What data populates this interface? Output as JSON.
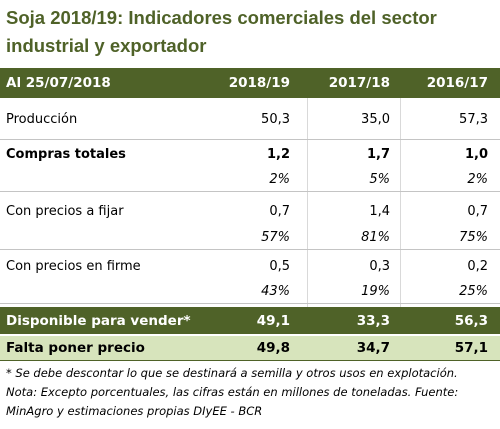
{
  "title": "Soja 2018/19: Indicadores comerciales del sector industrial y exportador",
  "table": {
    "header": [
      "Al 25/07/2018",
      "2018/19",
      "2017/18",
      "2016/17"
    ],
    "rows": [
      {
        "label": "Producción",
        "values": [
          "50,3",
          "35,0",
          "57,3"
        ]
      },
      {
        "label": "Compras totales",
        "values": [
          "1,2",
          "1,7",
          "1,0"
        ],
        "shares": [
          "2%",
          "5%",
          "2%"
        ]
      },
      {
        "label": "Con precios a fijar",
        "values": [
          "0,7",
          "1,4",
          "0,7"
        ],
        "shares": [
          "57%",
          "81%",
          "75%"
        ]
      },
      {
        "label": "Con precios en firme",
        "values": [
          "0,5",
          "0,3",
          "0,2"
        ],
        "shares": [
          "43%",
          "19%",
          "25%"
        ]
      },
      {
        "label": "Disponible para vender*",
        "values": [
          "49,1",
          "33,3",
          "56,3"
        ]
      },
      {
        "label": "Falta poner precio",
        "values": [
          "49,8",
          "34,7",
          "57,1"
        ]
      }
    ],
    "notes": [
      "* Se debe descontar lo que se destinará a semilla y otros usos en explotación.",
      "Nota: Excepto porcentuales, las cifras están en millones de toneladas. Fuente: MinAgro y estimaciones propias DIyEE - BCR"
    ]
  }
}
